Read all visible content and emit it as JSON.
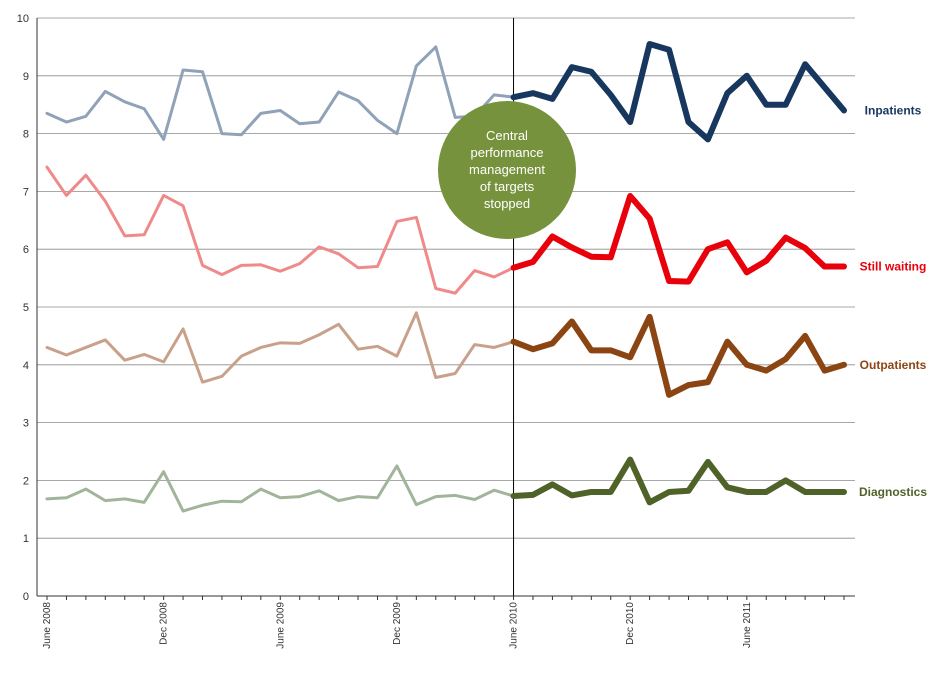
{
  "chart_data": {
    "type": "line",
    "title": "",
    "xlabel": "",
    "ylabel": "",
    "ylim": [
      0,
      10
    ],
    "yticks": [
      "0",
      "1",
      "2",
      "3",
      "4",
      "5",
      "6",
      "7",
      "8",
      "9",
      "10"
    ],
    "grid": true,
    "months": [
      "Jun 2008",
      "Jul 2008",
      "Aug 2008",
      "Sep 2008",
      "Oct 2008",
      "Nov 2008",
      "Dec 2008",
      "Jan 2009",
      "Feb 2009",
      "Mar 2009",
      "Apr 2009",
      "May 2009",
      "Jun 2009",
      "Jul 2009",
      "Aug 2009",
      "Sep 2009",
      "Oct 2009",
      "Nov 2009",
      "Dec 2009",
      "Jan 2010",
      "Feb 2010",
      "Mar 2010",
      "Apr 2010",
      "May 2010",
      "Jun 2010",
      "Jul 2010",
      "Aug 2010",
      "Sep 2010",
      "Oct 2010",
      "Nov 2010",
      "Dec 2010",
      "Jan 2011",
      "Feb 2011",
      "Mar 2011",
      "Apr 2011",
      "May 2011",
      "Jun 2011",
      "Jul 2011",
      "Aug 2011",
      "Sep 2011",
      "Oct 2011",
      "Nov 2011"
    ],
    "xtick_labels": [
      {
        "index": 0,
        "label": "June 2008"
      },
      {
        "index": 6,
        "label": "Dec 2008"
      },
      {
        "index": 12,
        "label": "June 2009"
      },
      {
        "index": 18,
        "label": "Dec 2009"
      },
      {
        "index": 24,
        "label": "June 2010"
      },
      {
        "index": 30,
        "label": "Dec 2010"
      },
      {
        "index": 36,
        "label": "June 2011"
      }
    ],
    "split_index": 24,
    "series": [
      {
        "name": "Inpatients",
        "color_before": "#8fa2b7",
        "color_after": "#17375e",
        "values": [
          8.35,
          8.2,
          8.3,
          8.73,
          8.55,
          8.43,
          7.9,
          9.1,
          9.07,
          8.0,
          7.98,
          8.35,
          8.4,
          8.17,
          8.2,
          8.72,
          8.57,
          8.23,
          8.0,
          9.17,
          9.5,
          8.28,
          8.3,
          8.67,
          8.63,
          8.7,
          8.6,
          9.15,
          9.07,
          8.67,
          8.2,
          9.55,
          9.45,
          8.2,
          7.9,
          8.7,
          9.0,
          8.5,
          8.5,
          9.2,
          8.8,
          8.4
        ]
      },
      {
        "name": "Still waiting",
        "color_before": "#ef8a8a",
        "color_after": "#e8000b",
        "values": [
          7.42,
          6.93,
          7.28,
          6.83,
          6.23,
          6.25,
          6.93,
          6.75,
          5.72,
          5.56,
          5.72,
          5.73,
          5.62,
          5.75,
          6.04,
          5.92,
          5.68,
          5.7,
          6.48,
          6.55,
          5.32,
          5.24,
          5.63,
          5.52,
          5.68,
          5.78,
          6.22,
          6.03,
          5.87,
          5.86,
          6.92,
          6.53,
          5.45,
          5.44,
          6.0,
          6.12,
          5.6,
          5.8,
          6.2,
          6.02,
          5.7,
          5.7
        ]
      },
      {
        "name": "Outpatients",
        "color_before": "#c9a18a",
        "color_after": "#8b4513",
        "values": [
          4.3,
          4.17,
          4.3,
          4.43,
          4.08,
          4.18,
          4.05,
          4.62,
          3.7,
          3.8,
          4.15,
          4.3,
          4.38,
          4.37,
          4.52,
          4.7,
          4.27,
          4.32,
          4.15,
          4.9,
          3.78,
          3.85,
          4.35,
          4.3,
          4.4,
          4.27,
          4.37,
          4.75,
          4.25,
          4.25,
          4.13,
          4.83,
          3.48,
          3.65,
          3.7,
          4.4,
          4.0,
          3.9,
          4.1,
          4.5,
          3.9,
          4.0
        ]
      },
      {
        "name": "Diagnostics",
        "color_before": "#a2b59a",
        "color_after": "#4f6228",
        "values": [
          1.68,
          1.7,
          1.85,
          1.65,
          1.68,
          1.62,
          2.15,
          1.47,
          1.57,
          1.64,
          1.63,
          1.85,
          1.7,
          1.72,
          1.82,
          1.65,
          1.72,
          1.7,
          2.25,
          1.58,
          1.72,
          1.74,
          1.67,
          1.83,
          1.73,
          1.75,
          1.93,
          1.74,
          1.8,
          1.8,
          2.36,
          1.62,
          1.8,
          1.82,
          2.32,
          1.88,
          1.8,
          1.8,
          2.0,
          1.8,
          1.8,
          1.8
        ]
      }
    ],
    "annotation": {
      "lines": [
        "Central",
        "performance",
        "management",
        "of targets",
        "stopped"
      ],
      "color": "#76923c"
    }
  }
}
